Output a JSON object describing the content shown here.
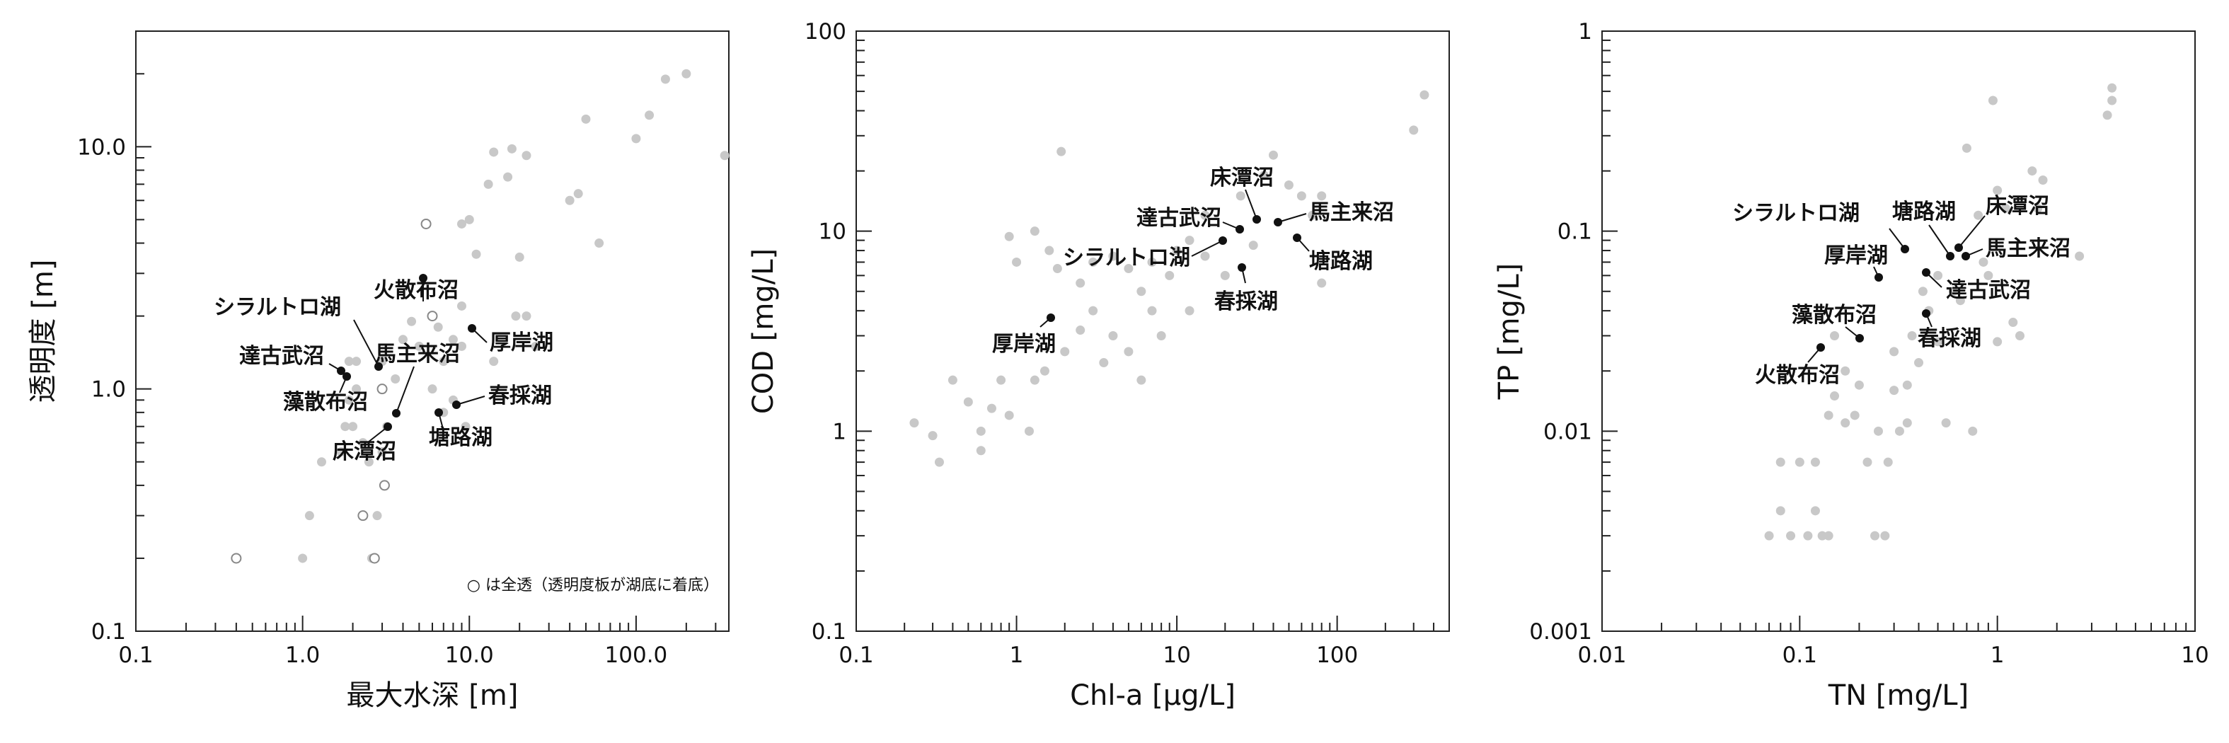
{
  "chart_data": [
    {
      "type": "scatter",
      "xlabel": "最大水深 [m]",
      "ylabel": "透明度 [m]",
      "xscale": "log",
      "yscale": "log",
      "xlim": [
        0.1,
        360
      ],
      "ylim": [
        0.1,
        30
      ],
      "xticks": [
        {
          "v": 0.1,
          "label": "0.1"
        },
        {
          "v": 1,
          "label": "1.0"
        },
        {
          "v": 10,
          "label": "10.0"
        },
        {
          "v": 100,
          "label": "100.0"
        }
      ],
      "yticks": [
        {
          "v": 0.1,
          "label": "0.1"
        },
        {
          "v": 1,
          "label": "1.0"
        },
        {
          "v": 10,
          "label": "10.0"
        }
      ],
      "note": "○ は全透（透明度板が湖底に着底）",
      "background_points": [
        [
          0.4,
          0.2
        ],
        [
          1.0,
          0.2
        ],
        [
          1.1,
          0.3
        ],
        [
          1.3,
          0.5
        ],
        [
          1.7,
          0.55
        ],
        [
          1.8,
          0.7
        ],
        [
          2.0,
          0.7
        ],
        [
          1.9,
          0.9
        ],
        [
          2.1,
          1.0
        ],
        [
          2.1,
          1.3
        ],
        [
          1.9,
          1.3
        ],
        [
          2.3,
          0.6
        ],
        [
          2.6,
          0.2
        ],
        [
          2.5,
          0.5
        ],
        [
          2.8,
          0.3
        ],
        [
          3.0,
          0.55
        ],
        [
          3.2,
          0.7
        ],
        [
          3.0,
          1.3
        ],
        [
          3.6,
          1.1
        ],
        [
          4.0,
          1.6
        ],
        [
          4.5,
          1.9
        ],
        [
          5.0,
          1.5
        ],
        [
          6.0,
          1.0
        ],
        [
          6.5,
          1.8
        ],
        [
          7.0,
          1.3
        ],
        [
          7.0,
          0.8
        ],
        [
          8.0,
          0.9
        ],
        [
          8.0,
          1.6
        ],
        [
          9.0,
          1.5
        ],
        [
          9.5,
          0.7
        ],
        [
          9.0,
          2.2
        ],
        [
          9.0,
          4.8
        ],
        [
          10.0,
          5.0
        ],
        [
          11.0,
          3.6
        ],
        [
          13.0,
          7.0
        ],
        [
          14.0,
          9.5
        ],
        [
          18.0,
          9.8
        ],
        [
          17.0,
          7.5
        ],
        [
          19.0,
          2.0
        ],
        [
          20.0,
          3.5
        ],
        [
          22.0,
          9.2
        ],
        [
          22.0,
          2.0
        ],
        [
          14.0,
          1.3
        ],
        [
          25.0,
          1.5
        ],
        [
          40.0,
          6.0
        ],
        [
          45.0,
          6.4
        ],
        [
          50.0,
          13.0
        ],
        [
          60.0,
          4.0
        ],
        [
          100.0,
          10.8
        ],
        [
          120.0,
          13.5
        ],
        [
          150.0,
          19.0
        ],
        [
          200.0,
          20.0
        ],
        [
          340.0,
          9.2
        ]
      ],
      "open_points": [
        [
          0.4,
          0.2
        ],
        [
          2.3,
          0.3
        ],
        [
          2.7,
          0.2
        ],
        [
          3.1,
          0.4
        ],
        [
          3.0,
          1.0
        ],
        [
          5.5,
          4.8
        ],
        [
          6.0,
          2.0
        ]
      ],
      "labels": [
        {
          "name": "シラルトロ湖",
          "x": 3.1,
          "y": 1.6
        },
        {
          "name": "火散布沼",
          "x": 6.0,
          "y": 2.0
        },
        {
          "name": "厚岸湖",
          "x": 11.0,
          "y": 1.8
        },
        {
          "name": "達古武沼",
          "x": 1.8,
          "y": 1.2
        },
        {
          "name": "馬主来沼",
          "x": 4.0,
          "y": 0.8
        },
        {
          "name": "藻散布沼",
          "x": 2.0,
          "y": 1.15
        },
        {
          "name": "春採湖",
          "x": 9.0,
          "y": 0.85
        },
        {
          "name": "床潭沼",
          "x": 3.4,
          "y": 0.7
        },
        {
          "name": "塘路湖",
          "x": 7.0,
          "y": 0.8
        }
      ]
    },
    {
      "type": "scatter",
      "xlabel": "Chl-a [μg/L]",
      "ylabel": "COD [mg/L]",
      "xscale": "log",
      "yscale": "log",
      "xlim": [
        0.1,
        500
      ],
      "ylim": [
        0.1,
        100
      ],
      "xticks": [
        {
          "v": 0.1,
          "label": "0.1"
        },
        {
          "v": 1,
          "label": "1"
        },
        {
          "v": 10,
          "label": "10"
        },
        {
          "v": 100,
          "label": "100"
        }
      ],
      "yticks": [
        {
          "v": 0.1,
          "label": "0.1"
        },
        {
          "v": 1,
          "label": "1"
        },
        {
          "v": 10,
          "label": "10"
        },
        {
          "v": 100,
          "label": "100"
        }
      ],
      "background_points": [
        [
          0.23,
          1.1
        ],
        [
          0.3,
          0.95
        ],
        [
          0.33,
          0.7
        ],
        [
          0.4,
          1.8
        ],
        [
          0.5,
          1.4
        ],
        [
          0.6,
          1.0
        ],
        [
          0.6,
          0.8
        ],
        [
          0.7,
          1.3
        ],
        [
          0.8,
          1.8
        ],
        [
          0.9,
          1.2
        ],
        [
          0.9,
          9.4
        ],
        [
          1.0,
          7.0
        ],
        [
          1.2,
          1.0
        ],
        [
          1.3,
          10.0
        ],
        [
          1.3,
          1.8
        ],
        [
          1.5,
          2.0
        ],
        [
          1.6,
          8.0
        ],
        [
          1.8,
          6.5
        ],
        [
          1.9,
          25.0
        ],
        [
          2.0,
          2.5
        ],
        [
          2.5,
          3.2
        ],
        [
          2.5,
          5.5
        ],
        [
          3.0,
          4.0
        ],
        [
          3.0,
          7.0
        ],
        [
          3.5,
          2.2
        ],
        [
          4.0,
          3.0
        ],
        [
          4.0,
          7.5
        ],
        [
          5.0,
          2.5
        ],
        [
          5.0,
          6.5
        ],
        [
          6.0,
          1.8
        ],
        [
          6.0,
          5.0
        ],
        [
          7.0,
          4.0
        ],
        [
          7.0,
          7.0
        ],
        [
          8.0,
          3.0
        ],
        [
          9.0,
          6.0
        ],
        [
          10.0,
          8.0
        ],
        [
          12.0,
          4.0
        ],
        [
          12.0,
          9.0
        ],
        [
          15.0,
          7.5
        ],
        [
          15.0,
          12.0
        ],
        [
          20.0,
          6.0
        ],
        [
          25.0,
          15.0
        ],
        [
          30.0,
          8.5
        ],
        [
          35.0,
          19.0
        ],
        [
          40.0,
          24.0
        ],
        [
          50.0,
          17.0
        ],
        [
          60.0,
          15.0
        ],
        [
          70.0,
          12.0
        ],
        [
          80.0,
          5.5
        ],
        [
          80.0,
          15.0
        ],
        [
          300.0,
          32.0
        ],
        [
          350.0,
          48.0
        ]
      ],
      "labels": [
        {
          "name": "床潭沼",
          "x": 30,
          "y": 11.0
        },
        {
          "name": "達古武沼",
          "x": 24,
          "y": 10.0
        },
        {
          "name": "馬主来沼",
          "x": 40,
          "y": 11.0
        },
        {
          "name": "シラルトロ湖",
          "x": 19,
          "y": 9.0
        },
        {
          "name": "塘路湖",
          "x": 55,
          "y": 9.5
        },
        {
          "name": "春採湖",
          "x": 24,
          "y": 6.5
        },
        {
          "name": "厚岸湖",
          "x": 1.6,
          "y": 3.6
        }
      ]
    },
    {
      "type": "scatter",
      "xlabel": "TN [mg/L]",
      "ylabel": "TP [mg/L]",
      "xscale": "log",
      "yscale": "log",
      "xlim": [
        0.01,
        10
      ],
      "ylim": [
        0.001,
        1
      ],
      "xticks": [
        {
          "v": 0.01,
          "label": "0.01"
        },
        {
          "v": 0.1,
          "label": "0.1"
        },
        {
          "v": 1,
          "label": "1"
        },
        {
          "v": 10,
          "label": "10"
        }
      ],
      "yticks": [
        {
          "v": 0.001,
          "label": "0.001"
        },
        {
          "v": 0.01,
          "label": "0.01"
        },
        {
          "v": 0.1,
          "label": "0.1"
        },
        {
          "v": 1,
          "label": "1"
        }
      ],
      "background_points": [
        [
          0.07,
          0.003
        ],
        [
          0.08,
          0.004
        ],
        [
          0.08,
          0.007
        ],
        [
          0.09,
          0.003
        ],
        [
          0.1,
          0.007
        ],
        [
          0.11,
          0.003
        ],
        [
          0.12,
          0.004
        ],
        [
          0.12,
          0.007
        ],
        [
          0.13,
          0.003
        ],
        [
          0.14,
          0.003
        ],
        [
          0.14,
          0.012
        ],
        [
          0.15,
          0.015
        ],
        [
          0.15,
          0.03
        ],
        [
          0.17,
          0.011
        ],
        [
          0.17,
          0.02
        ],
        [
          0.19,
          0.012
        ],
        [
          0.2,
          0.017
        ],
        [
          0.22,
          0.007
        ],
        [
          0.24,
          0.003
        ],
        [
          0.25,
          0.01
        ],
        [
          0.27,
          0.003
        ],
        [
          0.28,
          0.007
        ],
        [
          0.3,
          0.025
        ],
        [
          0.3,
          0.016
        ],
        [
          0.32,
          0.01
        ],
        [
          0.35,
          0.011
        ],
        [
          0.35,
          0.017
        ],
        [
          0.37,
          0.03
        ],
        [
          0.4,
          0.022
        ],
        [
          0.42,
          0.05
        ],
        [
          0.45,
          0.04
        ],
        [
          0.5,
          0.028
        ],
        [
          0.5,
          0.06
        ],
        [
          0.55,
          0.011
        ],
        [
          0.6,
          0.05
        ],
        [
          0.65,
          0.045
        ],
        [
          0.7,
          0.26
        ],
        [
          0.75,
          0.01
        ],
        [
          0.8,
          0.12
        ],
        [
          0.85,
          0.07
        ],
        [
          0.9,
          0.06
        ],
        [
          0.95,
          0.45
        ],
        [
          1.0,
          0.16
        ],
        [
          1.0,
          0.028
        ],
        [
          1.1,
          0.13
        ],
        [
          1.2,
          0.035
        ],
        [
          1.3,
          0.03
        ],
        [
          1.5,
          0.2
        ],
        [
          1.6,
          0.13
        ],
        [
          1.7,
          0.18
        ],
        [
          2.6,
          0.075
        ],
        [
          3.6,
          0.38
        ],
        [
          3.8,
          0.45
        ],
        [
          3.8,
          0.52
        ]
      ],
      "labels": [
        {
          "name": "シラルトロ湖",
          "x": 0.35,
          "y": 0.08
        },
        {
          "name": "塘路湖",
          "x": 0.6,
          "y": 0.075
        },
        {
          "name": "床潭沼",
          "x": 0.6,
          "y": 0.09
        },
        {
          "name": "馬主来沼",
          "x": 0.72,
          "y": 0.075
        },
        {
          "name": "厚岸湖",
          "x": 0.27,
          "y": 0.06
        },
        {
          "name": "達古武沼",
          "x": 0.45,
          "y": 0.065
        },
        {
          "name": "藻散布沼",
          "x": 0.2,
          "y": 0.03
        },
        {
          "name": "春採湖",
          "x": 0.45,
          "y": 0.04
        },
        {
          "name": "火散布沼",
          "x": 0.13,
          "y": 0.026
        }
      ]
    }
  ]
}
